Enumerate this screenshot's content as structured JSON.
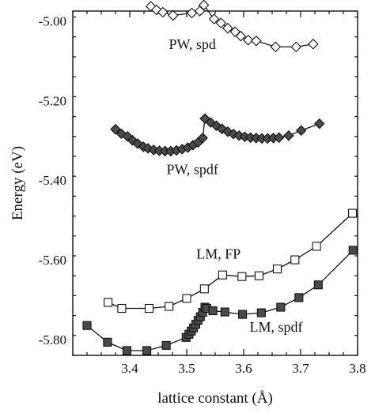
{
  "chart_data": {
    "type": "scatter",
    "title": "",
    "xlabel": "lattice constant (Å)",
    "ylabel": "Energy (eV)",
    "xlim": [
      3.3,
      3.8
    ],
    "ylim": [
      -5.84,
      -4.975
    ],
    "grid": false,
    "x_ticks": [
      3.4,
      3.5,
      3.6,
      3.7,
      3.8
    ],
    "x_tick_labels": [
      "3.4",
      "3.5",
      "3.6",
      "3.7",
      "3.8"
    ],
    "y_ticks": [
      -5.0,
      -5.2,
      -5.4,
      -5.6,
      -5.8
    ],
    "y_tick_labels": [
      "-5.00",
      "-5.20",
      "-5.40",
      "-5.60",
      "-5.80"
    ],
    "series": [
      {
        "name": "PW, spd",
        "marker": "diamond",
        "fill": "open",
        "line": true,
        "x": [
          3.437,
          3.447,
          3.458,
          3.476,
          3.509,
          3.523,
          3.53,
          3.548,
          3.56,
          3.572,
          3.585,
          3.595,
          3.608,
          3.622,
          3.656,
          3.692,
          3.722
        ],
        "y": [
          -4.963,
          -4.972,
          -4.978,
          -4.986,
          -4.98,
          -4.975,
          -4.96,
          -4.995,
          -5.005,
          -5.018,
          -5.027,
          -5.038,
          -5.048,
          -5.05,
          -5.065,
          -5.065,
          -5.058
        ]
      },
      {
        "name": "PW, spdf",
        "marker": "diamond",
        "fill": "dark",
        "line": true,
        "x": [
          3.375,
          3.385,
          3.396,
          3.405,
          3.414,
          3.424,
          3.432,
          3.442,
          3.452,
          3.462,
          3.472,
          3.482,
          3.492,
          3.502,
          3.511,
          3.52,
          3.528,
          3.532,
          3.542,
          3.552,
          3.562,
          3.572,
          3.582,
          3.592,
          3.602,
          3.612,
          3.622,
          3.632,
          3.642,
          3.652,
          3.662,
          3.679,
          3.701,
          3.733
        ],
        "y": [
          -5.272,
          -5.283,
          -5.29,
          -5.3,
          -5.308,
          -5.316,
          -5.32,
          -5.324,
          -5.326,
          -5.327,
          -5.327,
          -5.325,
          -5.322,
          -5.318,
          -5.312,
          -5.305,
          -5.294,
          -5.245,
          -5.255,
          -5.263,
          -5.271,
          -5.278,
          -5.284,
          -5.288,
          -5.291,
          -5.293,
          -5.294,
          -5.295,
          -5.295,
          -5.294,
          -5.293,
          -5.288,
          -5.275,
          -5.258
        ]
      },
      {
        "name": "LM, FP",
        "marker": "square",
        "fill": "open",
        "line": true,
        "x": [
          3.362,
          3.386,
          3.434,
          3.469,
          3.5,
          3.531,
          3.563,
          3.597,
          3.627,
          3.659,
          3.69,
          3.728,
          3.791
        ],
        "y": [
          -5.707,
          -5.722,
          -5.722,
          -5.717,
          -5.697,
          -5.673,
          -5.638,
          -5.642,
          -5.64,
          -5.623,
          -5.6,
          -5.566,
          -5.483
        ]
      },
      {
        "name": "LM, spdf",
        "marker": "square",
        "fill": "dark",
        "line": true,
        "x": [
          3.325,
          3.361,
          3.395,
          3.43,
          3.464,
          3.499,
          3.504,
          3.508,
          3.512,
          3.516,
          3.52,
          3.524,
          3.528,
          3.532,
          3.535,
          3.546,
          3.567,
          3.598,
          3.631,
          3.665,
          3.697,
          3.731,
          3.792
        ],
        "y": [
          -5.765,
          -5.807,
          -5.828,
          -5.828,
          -5.815,
          -5.795,
          -5.787,
          -5.779,
          -5.771,
          -5.762,
          -5.752,
          -5.743,
          -5.732,
          -5.719,
          -5.722,
          -5.728,
          -5.731,
          -5.737,
          -5.733,
          -5.719,
          -5.695,
          -5.663,
          -5.576
        ]
      }
    ],
    "annotations": [
      {
        "text": "PW, spd",
        "x": 3.51,
        "y": -5.07
      },
      {
        "text": "PW, spdf",
        "x": 3.51,
        "y": -5.385
      },
      {
        "text": "LM, FP",
        "x": 3.556,
        "y": -5.597
      },
      {
        "text": "LM, spdf",
        "x": 3.657,
        "y": -5.78
      }
    ]
  }
}
